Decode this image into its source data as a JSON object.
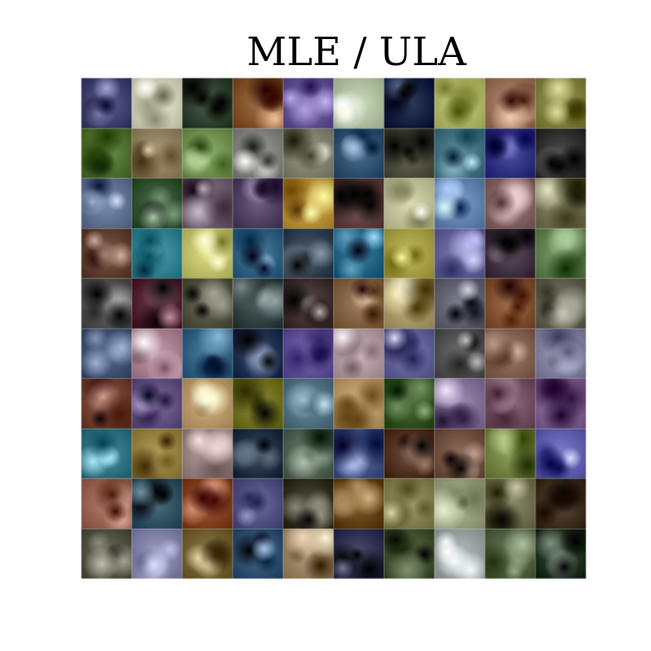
{
  "title": "MLE / ULA",
  "grid": {
    "rows": 10,
    "cols": 10,
    "tiles": [
      [
        "#4a4a78",
        "#d8d8c0",
        "#3a4a3a",
        "#8a5a32",
        "#6a5a9a",
        "#b8c8a8",
        "#1a2a4a",
        "#b8c070",
        "#a07860",
        "#8a8a48"
      ],
      [
        "#5a7a3a",
        "#9a8a6a",
        "#7a9a5a",
        "#8a8a88",
        "#8a8a78",
        "#3a5a7a",
        "#5a5a4a",
        "#4a7a8a",
        "#3a3a8a",
        "#3a3a3a"
      ],
      [
        "#6a7a9a",
        "#3a5a3a",
        "#7a6a7a",
        "#5a4a6a",
        "#c09a40",
        "#6a4a4a",
        "#c8c8a0",
        "#6a8ab8",
        "#8a6a6a",
        "#7a7a5a"
      ],
      [
        "#6a4a3a",
        "#3a8a9a",
        "#c8c870",
        "#3a6a8a",
        "#3a4a5a",
        "#2a6a8a",
        "#b0a850",
        "#6a6aa0",
        "#4a3a4a",
        "#6a8a5a"
      ],
      [
        "#5a5a5a",
        "#5a2a3a",
        "#5a5a4a",
        "#3a4a4a",
        "#4a3a3a",
        "#8a6a4a",
        "#b0a070",
        "#6a6a78",
        "#8a5a3a",
        "#6a6a5a"
      ],
      [
        "#4a5a7a",
        "#b08898",
        "#3a6a8a",
        "#2a3a5a",
        "#6a5aa0",
        "#b8a0a8",
        "#6a6aa0",
        "#5a5a5a",
        "#8a6a5a",
        "#8a8aa8"
      ],
      [
        "#7a4a3a",
        "#6a5a8a",
        "#c0a070",
        "#7a7a2a",
        "#5a7a8a",
        "#c0a070",
        "#3a5a2a",
        "#8a7aa0",
        "#7a5a6a",
        "#8a6a9a"
      ],
      [
        "#3a7a8a",
        "#a08a4a",
        "#a08a8a",
        "#2a3a4a",
        "#5a6a5a",
        "#4a5a8a",
        "#5a3a2a",
        "#7a5a4a",
        "#7a8a4a",
        "#6a6ab8"
      ],
      [
        "#a06a5a",
        "#3a5a6a",
        "#8a4a2a",
        "#5a5a8a",
        "#3a3a2a",
        "#6a4a1a",
        "#8a8a5a",
        "#a0a888",
        "#7a7a5a",
        "#4a3a2a"
      ],
      [
        "#5a5a4a",
        "#8a8ab0",
        "#7a6a3a",
        "#3a5a7a",
        "#a08a6a",
        "#3a3a5a",
        "#4a5a3a",
        "#a0a8a8",
        "#5a6a4a",
        "#2a3a2a"
      ]
    ]
  }
}
